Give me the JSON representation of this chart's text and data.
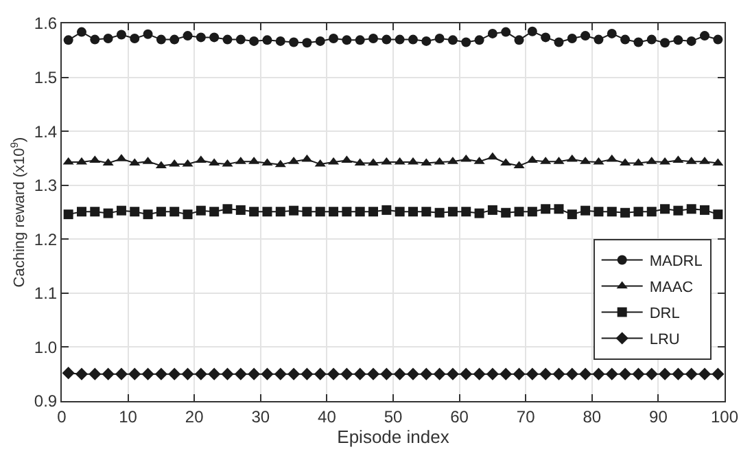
{
  "chart_data": {
    "type": "line",
    "xlabel": "Episode index",
    "ylabel": "Caching reward (x10$^{9}$)",
    "x": [
      1,
      3,
      5,
      7,
      9,
      11,
      13,
      15,
      17,
      19,
      21,
      23,
      25,
      27,
      29,
      31,
      33,
      35,
      37,
      39,
      41,
      43,
      45,
      47,
      49,
      51,
      53,
      55,
      57,
      59,
      61,
      63,
      65,
      67,
      69,
      71,
      73,
      75,
      77,
      79,
      81,
      83,
      85,
      87,
      89,
      91,
      93,
      95,
      97,
      99
    ],
    "xlim": [
      0,
      100
    ],
    "xticks": [
      0,
      10,
      20,
      30,
      40,
      50,
      60,
      70,
      80,
      90,
      100
    ],
    "ylim": [
      0.9,
      1.6
    ],
    "yticks": [
      {
        "value": 0.9,
        "label": "0.9"
      },
      {
        "value": 1.0,
        "label": "1.0"
      },
      {
        "value": 1.1,
        "label": "1.1"
      },
      {
        "value": 1.2,
        "label": "1.2"
      },
      {
        "value": 1.3,
        "label": "1.3"
      },
      {
        "value": 1.4,
        "label": "1.4"
      },
      {
        "value": 1.5,
        "label": "1.5"
      },
      {
        "value": 1.6,
        "label": "1.6"
      }
    ],
    "grid": true,
    "legend": "right",
    "line_style": "solid",
    "series": [
      {
        "name": "MADRL",
        "color": "#1a1a1a",
        "marker": "circle",
        "values": [
          1.569,
          1.584,
          1.57,
          1.572,
          1.579,
          1.572,
          1.58,
          1.57,
          1.57,
          1.577,
          1.574,
          1.574,
          1.57,
          1.57,
          1.567,
          1.569,
          1.567,
          1.565,
          1.564,
          1.567,
          1.572,
          1.569,
          1.569,
          1.572,
          1.57,
          1.57,
          1.57,
          1.567,
          1.572,
          1.569,
          1.565,
          1.569,
          1.581,
          1.584,
          1.569,
          1.585,
          1.574,
          1.565,
          1.572,
          1.577,
          1.57,
          1.581,
          1.57,
          1.565,
          1.57,
          1.564,
          1.569,
          1.567,
          1.577,
          1.57
        ]
      },
      {
        "name": "MAAC",
        "color": "#1a1a1a",
        "marker": "triangle",
        "values": [
          1.343,
          1.343,
          1.346,
          1.341,
          1.349,
          1.341,
          1.344,
          1.336,
          1.339,
          1.339,
          1.346,
          1.341,
          1.339,
          1.344,
          1.344,
          1.341,
          1.338,
          1.344,
          1.348,
          1.339,
          1.343,
          1.346,
          1.341,
          1.341,
          1.343,
          1.343,
          1.343,
          1.341,
          1.343,
          1.344,
          1.348,
          1.344,
          1.352,
          1.341,
          1.336,
          1.346,
          1.344,
          1.344,
          1.348,
          1.344,
          1.343,
          1.348,
          1.341,
          1.341,
          1.344,
          1.343,
          1.346,
          1.344,
          1.344,
          1.341
        ]
      },
      {
        "name": "DRL",
        "color": "#1a1a1a",
        "marker": "square",
        "values": [
          1.246,
          1.251,
          1.251,
          1.248,
          1.253,
          1.251,
          1.246,
          1.251,
          1.251,
          1.246,
          1.253,
          1.251,
          1.256,
          1.254,
          1.251,
          1.251,
          1.251,
          1.253,
          1.251,
          1.251,
          1.251,
          1.251,
          1.251,
          1.251,
          1.254,
          1.251,
          1.251,
          1.251,
          1.249,
          1.251,
          1.251,
          1.248,
          1.254,
          1.249,
          1.251,
          1.251,
          1.256,
          1.256,
          1.246,
          1.253,
          1.251,
          1.251,
          1.249,
          1.251,
          1.251,
          1.256,
          1.253,
          1.256,
          1.254,
          1.246
        ]
      },
      {
        "name": "LRU",
        "color": "#1a1a1a",
        "marker": "diamond",
        "values": [
          0.952,
          0.95,
          0.95,
          0.95,
          0.95,
          0.95,
          0.95,
          0.95,
          0.95,
          0.95,
          0.95,
          0.95,
          0.95,
          0.95,
          0.95,
          0.95,
          0.95,
          0.95,
          0.95,
          0.95,
          0.95,
          0.95,
          0.95,
          0.95,
          0.95,
          0.95,
          0.95,
          0.95,
          0.95,
          0.95,
          0.95,
          0.95,
          0.95,
          0.95,
          0.95,
          0.95,
          0.95,
          0.95,
          0.95,
          0.95,
          0.95,
          0.95,
          0.95,
          0.95,
          0.95,
          0.95,
          0.95,
          0.95,
          0.95,
          0.95
        ]
      }
    ]
  }
}
